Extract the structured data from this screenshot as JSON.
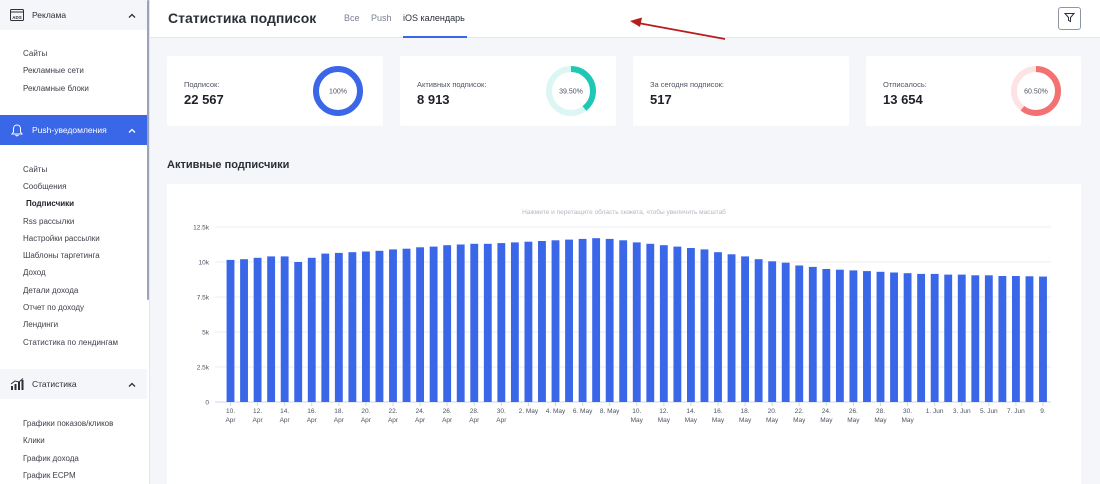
{
  "sidebar": {
    "sections": [
      {
        "name": "ads",
        "label": "Реклама",
        "icon": "ads-icon",
        "active": false,
        "items": [
          "Сайты",
          "Рекламные сети",
          "Рекламные блоки"
        ]
      },
      {
        "name": "push",
        "label": "Push-уведомления",
        "icon": "bell-icon",
        "active": true,
        "items": [
          "Сайты",
          "Сообщения",
          "Подписчики",
          "Rss рассылки",
          "Настройки рассылки",
          "Шаблоны таргетинга",
          "Доход",
          "Детали дохода",
          "Отчет по доходу",
          "Лендинги",
          "Статистика по лендингам"
        ],
        "selected": "Подписчики"
      },
      {
        "name": "stats",
        "label": "Статистика",
        "icon": "chart-icon",
        "active": false,
        "items": [
          "Графики показов/кликов",
          "Клики",
          "График дохода",
          "График ECPM"
        ]
      }
    ]
  },
  "header": {
    "title": "Статистика подписок",
    "tabs": [
      {
        "label": "Все",
        "active": false
      },
      {
        "label": "Push",
        "active": false
      },
      {
        "label": "iOS календарь",
        "active": true
      }
    ]
  },
  "cards": [
    {
      "label": "Подписок:",
      "value": "22 567",
      "ring_text": "100%",
      "percent": 100,
      "color": "#3a66e8",
      "track": "#e8eefc"
    },
    {
      "label": "Активных подписок:",
      "value": "8 913",
      "ring_text": "39.50%",
      "percent": 39.5,
      "color": "#1fc8b4",
      "track": "#dcf6f3"
    },
    {
      "label": "За сегодня подписок:",
      "value": "517",
      "ring_text": "",
      "percent": 0,
      "color": "#ffffff",
      "track": "#ffffff"
    },
    {
      "label": "Отписалось:",
      "value": "13 654",
      "ring_text": "60.50%",
      "percent": 60.5,
      "color": "#f47173",
      "track": "#fde3e3"
    }
  ],
  "section_title": "Активные подписчики",
  "chart_data": {
    "type": "bar",
    "hint": "Нажмите и перетащите область сюжета, чтобы увеличить масштаб",
    "color": "#3a66e8",
    "y_ticks": [
      "0",
      "2.5k",
      "5k",
      "7.5k",
      "10k",
      "12.5k"
    ],
    "ylim": [
      0,
      12500
    ],
    "x_tick_labels": [
      [
        "10.",
        "Apr"
      ],
      [
        "12.",
        "Apr"
      ],
      [
        "14.",
        "Apr"
      ],
      [
        "16.",
        "Apr"
      ],
      [
        "18.",
        "Apr"
      ],
      [
        "20.",
        "Apr"
      ],
      [
        "22.",
        "Apr"
      ],
      [
        "24.",
        "Apr"
      ],
      [
        "26.",
        "Apr"
      ],
      [
        "28.",
        "Apr"
      ],
      [
        "30.",
        "Apr"
      ],
      [
        "2. May",
        ""
      ],
      [
        "4. May",
        ""
      ],
      [
        "6. May",
        ""
      ],
      [
        "8. May",
        ""
      ],
      [
        "10.",
        "May"
      ],
      [
        "12.",
        "May"
      ],
      [
        "14.",
        "May"
      ],
      [
        "16.",
        "May"
      ],
      [
        "18.",
        "May"
      ],
      [
        "20.",
        "May"
      ],
      [
        "22.",
        "May"
      ],
      [
        "24.",
        "May"
      ],
      [
        "26.",
        "May"
      ],
      [
        "28.",
        "May"
      ],
      [
        "30.",
        "May"
      ],
      [
        "1. Jun",
        ""
      ],
      [
        "3. Jun",
        ""
      ],
      [
        "5. Jun",
        ""
      ],
      [
        "7. Jun",
        ""
      ],
      [
        "9.",
        ""
      ]
    ],
    "values": [
      10150,
      10200,
      10300,
      10400,
      10400,
      10000,
      10300,
      10600,
      10650,
      10700,
      10750,
      10800,
      10900,
      10950,
      11050,
      11100,
      11200,
      11250,
      11300,
      11300,
      11350,
      11400,
      11450,
      11500,
      11550,
      11600,
      11650,
      11700,
      11650,
      11550,
      11400,
      11300,
      11200,
      11100,
      11000,
      10900,
      10700,
      10550,
      10400,
      10200,
      10050,
      9950,
      9750,
      9650,
      9500,
      9450,
      9400,
      9350,
      9300,
      9250,
      9200,
      9150,
      9150,
      9100,
      9100,
      9050,
      9050,
      9000,
      9000,
      8980,
      8960
    ]
  }
}
